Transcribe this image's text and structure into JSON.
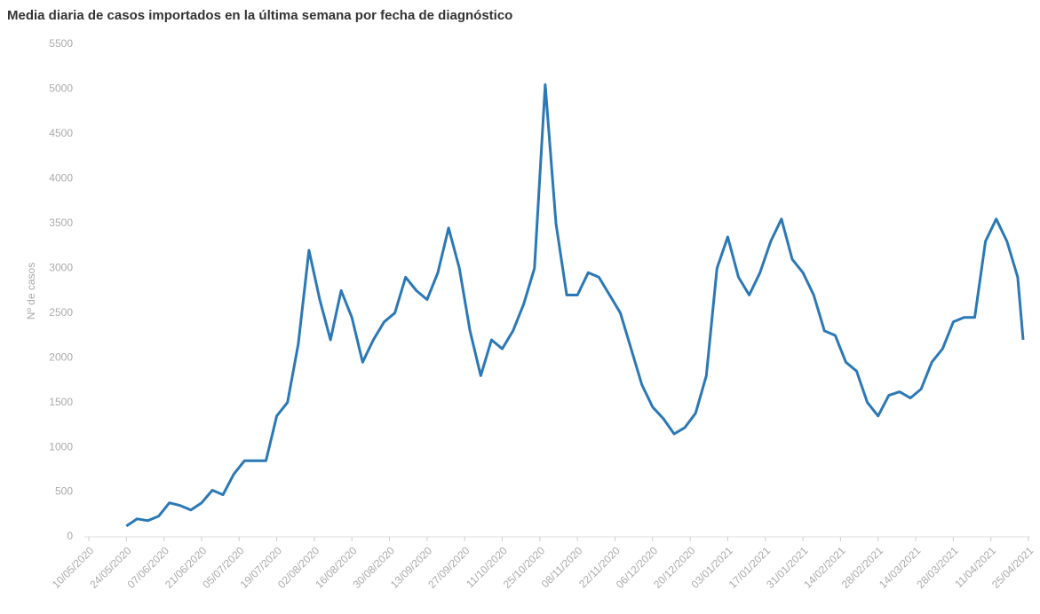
{
  "chart_data": {
    "type": "line",
    "title": "Media diaria de casos importados en la última semana por fecha de diagnóstico",
    "y_label": "Nº de casos",
    "color": "#2a78b6",
    "x": [
      "24/05/2020",
      "28/05/2020",
      "01/06/2020",
      "05/06/2020",
      "09/06/2020",
      "13/06/2020",
      "17/06/2020",
      "21/06/2020",
      "25/06/2020",
      "29/06/2020",
      "03/07/2020",
      "07/07/2020",
      "11/07/2020",
      "15/07/2020",
      "19/07/2020",
      "23/07/2020",
      "27/07/2020",
      "31/07/2020",
      "04/08/2020",
      "08/08/2020",
      "12/08/2020",
      "16/08/2020",
      "20/08/2020",
      "24/08/2020",
      "28/08/2020",
      "01/09/2020",
      "05/09/2020",
      "09/09/2020",
      "13/09/2020",
      "17/09/2020",
      "21/09/2020",
      "25/09/2020",
      "29/09/2020",
      "03/10/2020",
      "07/10/2020",
      "11/10/2020",
      "15/10/2020",
      "19/10/2020",
      "23/10/2020",
      "27/10/2020",
      "31/10/2020",
      "04/11/2020",
      "08/11/2020",
      "12/11/2020",
      "16/11/2020",
      "20/11/2020",
      "24/11/2020",
      "28/11/2020",
      "02/12/2020",
      "06/12/2020",
      "10/12/2020",
      "14/12/2020",
      "18/12/2020",
      "22/12/2020",
      "26/12/2020",
      "30/12/2020",
      "03/01/2021",
      "07/01/2021",
      "11/01/2021",
      "15/01/2021",
      "19/01/2021",
      "23/01/2021",
      "27/01/2021",
      "31/01/2021",
      "04/02/2021",
      "08/02/2021",
      "12/02/2021",
      "16/02/2021",
      "20/02/2021",
      "24/02/2021",
      "28/02/2021",
      "04/03/2021",
      "08/03/2021",
      "12/03/2021",
      "16/03/2021",
      "20/03/2021",
      "24/03/2021",
      "28/03/2021",
      "01/04/2021",
      "05/04/2021",
      "09/04/2021",
      "13/04/2021",
      "17/04/2021",
      "21/04/2021",
      "23/04/2021"
    ],
    "values": [
      120,
      200,
      180,
      230,
      380,
      350,
      300,
      380,
      520,
      470,
      700,
      850,
      850,
      850,
      1350,
      1500,
      2150,
      3200,
      2650,
      2200,
      2750,
      2450,
      1950,
      2200,
      2400,
      2500,
      2900,
      2750,
      2650,
      2950,
      3450,
      3000,
      2300,
      1800,
      2200,
      2100,
      2300,
      2600,
      3000,
      5050,
      3500,
      2700,
      2700,
      2950,
      2900,
      2700,
      2500,
      2100,
      1700,
      1450,
      1320,
      1150,
      1220,
      1380,
      1800,
      3000,
      3350,
      2900,
      2700,
      2950,
      3300,
      3550,
      3100,
      2950,
      2700,
      2300,
      2250,
      1950,
      1850,
      1500,
      1350,
      1580,
      1620,
      1550,
      1650,
      1950,
      2100,
      2400,
      2450,
      2450,
      3300,
      3550,
      3300,
      2900,
      2200
    ],
    "xlim": [
      "10/05/2020",
      "25/04/2021"
    ],
    "xticks": [
      "10/05/2020",
      "24/05/2020",
      "07/06/2020",
      "21/06/2020",
      "05/07/2020",
      "19/07/2020",
      "02/08/2020",
      "16/08/2020",
      "30/08/2020",
      "13/09/2020",
      "27/09/2020",
      "11/10/2020",
      "25/10/2020",
      "08/11/2020",
      "22/11/2020",
      "06/12/2020",
      "20/12/2020",
      "03/01/2021",
      "17/01/2021",
      "31/01/2021",
      "14/02/2021",
      "28/02/2021",
      "14/03/2021",
      "28/03/2021",
      "11/04/2021",
      "25/04/2021"
    ],
    "ylim": [
      0,
      5500
    ],
    "yticks": [
      0,
      500,
      1000,
      1500,
      2000,
      2500,
      3000,
      3500,
      4000,
      4500,
      5000,
      5500
    ]
  }
}
